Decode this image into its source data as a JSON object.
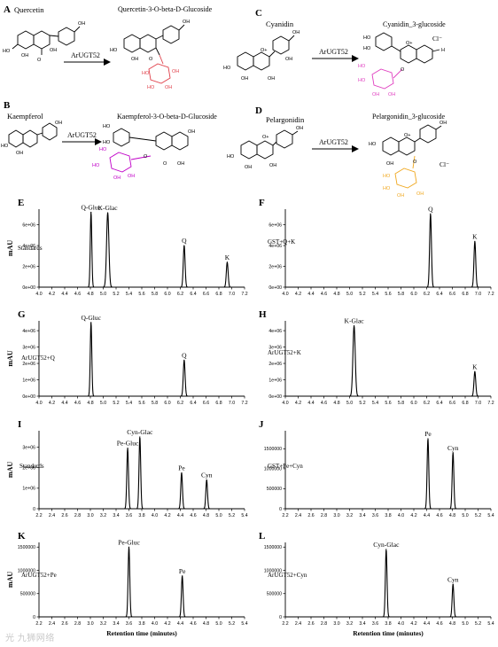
{
  "figure": {
    "watermark": "光 九狮网络"
  },
  "reactions": [
    {
      "panel": "A",
      "substrate": "Quercetin",
      "enzyme": "ArUGT52",
      "product": "Quercetin-3-O-beta-D-Glucoside",
      "sugar_color": "#e0404a"
    },
    {
      "panel": "B",
      "substrate": "Kaempferol",
      "enzyme": "ArUGT52",
      "product": "Kaempferol-3-O-beta-D-Glucoside",
      "sugar_color": "#c000c8"
    },
    {
      "panel": "C",
      "substrate": "Cyanidin",
      "enzyme": "ArUGT52",
      "product": "Cyanidin_3-glucoside",
      "sugar_color": "#e040c0",
      "counter_ion": "Cl⁻"
    },
    {
      "panel": "D",
      "substrate": "Pelargonidin",
      "enzyme": "ArUGT52",
      "product": "Pelargonidin_3-glucoside",
      "sugar_color": "#f0a820",
      "counter_ion": "Cl⁻"
    }
  ],
  "chart_data": [
    {
      "panel": "E",
      "type": "line",
      "ylabel": "mAU",
      "xlabel": "",
      "sample": "Standards",
      "xlim": [
        4.0,
        7.2
      ],
      "xticks": [
        4.0,
        4.2,
        4.4,
        4.6,
        4.8,
        5.0,
        5.2,
        5.4,
        5.6,
        5.8,
        6.0,
        6.2,
        6.4,
        6.6,
        6.8,
        7.0,
        7.2
      ],
      "ylim": [
        0,
        7500000
      ],
      "yticks": [
        0,
        2000000,
        4000000,
        6000000
      ],
      "ytick_labels": [
        "0e+00",
        "2e+06",
        "4e+06",
        "6e+06"
      ],
      "peaks": [
        {
          "x": 4.81,
          "y": 7200000,
          "w": 0.012,
          "label": "Q-Gluc"
        },
        {
          "x": 5.07,
          "y": 7150000,
          "w": 0.018,
          "label": "K-Glac"
        },
        {
          "x": 6.26,
          "y": 4000000,
          "w": 0.014,
          "label": "Q"
        },
        {
          "x": 6.93,
          "y": 2400000,
          "w": 0.014,
          "label": "K"
        }
      ]
    },
    {
      "panel": "F",
      "type": "line",
      "ylabel": "",
      "xlabel": "",
      "sample": "GST+Q+K",
      "xlim": [
        4.0,
        7.2
      ],
      "xticks": [
        4.0,
        4.2,
        4.4,
        4.6,
        4.8,
        5.0,
        5.2,
        5.4,
        5.6,
        5.8,
        6.0,
        6.2,
        6.4,
        6.6,
        6.8,
        7.0,
        7.2
      ],
      "ylim": [
        0,
        7500000
      ],
      "yticks": [
        0,
        2000000,
        4000000,
        6000000
      ],
      "ytick_labels": [
        "0e+00",
        "2e+06",
        "4e+06",
        "6e+06"
      ],
      "peaks": [
        {
          "x": 6.26,
          "y": 7050000,
          "w": 0.014,
          "label": "Q"
        },
        {
          "x": 6.95,
          "y": 4400000,
          "w": 0.014,
          "label": "K"
        }
      ]
    },
    {
      "panel": "G",
      "type": "line",
      "ylabel": "mAU",
      "xlabel": "",
      "sample": "ArUGT52+Q",
      "xlim": [
        4.0,
        7.2
      ],
      "xticks": [
        4.0,
        4.2,
        4.4,
        4.6,
        4.8,
        5.0,
        5.2,
        5.4,
        5.6,
        5.8,
        6.0,
        6.2,
        6.4,
        6.6,
        6.8,
        7.0,
        7.2
      ],
      "ylim": [
        0,
        4600000
      ],
      "yticks": [
        0,
        1000000,
        2000000,
        3000000,
        4000000
      ],
      "ytick_labels": [
        "0e+00",
        "1e+06",
        "2e+06",
        "3e+06",
        "4e+06"
      ],
      "peaks": [
        {
          "x": 4.81,
          "y": 4500000,
          "w": 0.012,
          "label": "Q-Gluc"
        },
        {
          "x": 6.26,
          "y": 2200000,
          "w": 0.014,
          "label": "Q"
        }
      ]
    },
    {
      "panel": "H",
      "type": "line",
      "ylabel": "",
      "xlabel": "",
      "sample": "ArUGT52+K",
      "xlim": [
        4.0,
        7.2
      ],
      "xticks": [
        4.0,
        4.2,
        4.4,
        4.6,
        4.8,
        5.0,
        5.2,
        5.4,
        5.6,
        5.8,
        6.0,
        6.2,
        6.4,
        6.6,
        6.8,
        7.0,
        7.2
      ],
      "ylim": [
        0,
        4600000
      ],
      "yticks": [
        0,
        1000000,
        2000000,
        3000000,
        4000000
      ],
      "ytick_labels": [
        "0e+00",
        "1e+06",
        "2e+06",
        "3e+06",
        "4e+06"
      ],
      "peaks": [
        {
          "x": 5.07,
          "y": 4300000,
          "w": 0.018,
          "label": "K-Glac"
        },
        {
          "x": 6.95,
          "y": 1500000,
          "w": 0.014,
          "label": "K"
        }
      ]
    },
    {
      "panel": "I",
      "type": "line",
      "ylabel": "mAU",
      "xlabel": "",
      "sample": "Standards",
      "xlim": [
        2.2,
        5.4
      ],
      "xticks": [
        2.2,
        2.4,
        2.6,
        2.8,
        3.0,
        3.2,
        3.4,
        3.6,
        3.8,
        4.0,
        4.2,
        4.4,
        4.6,
        4.8,
        5.0,
        5.2,
        5.4
      ],
      "ylim": [
        0,
        3800000
      ],
      "yticks": [
        0,
        1000000,
        2000000,
        3000000
      ],
      "ytick_labels": [
        "0",
        "1e+06",
        "2e+06",
        "3e+06"
      ],
      "peaks": [
        {
          "x": 3.58,
          "y": 2950000,
          "w": 0.013,
          "label": "Pe-Gluc"
        },
        {
          "x": 3.77,
          "y": 3500000,
          "w": 0.013,
          "label": "Cyn-Glac"
        },
        {
          "x": 4.42,
          "y": 1750000,
          "w": 0.013,
          "label": "Pe"
        },
        {
          "x": 4.81,
          "y": 1400000,
          "w": 0.013,
          "label": "Cyn"
        }
      ]
    },
    {
      "panel": "J",
      "type": "line",
      "ylabel": "",
      "xlabel": "",
      "sample": "GST+Pe+Cyn",
      "xlim": [
        2.2,
        5.4
      ],
      "xticks": [
        2.2,
        2.4,
        2.6,
        2.8,
        3.0,
        3.2,
        3.4,
        3.6,
        3.8,
        4.0,
        4.2,
        4.4,
        4.6,
        4.8,
        5.0,
        5.2,
        5.4
      ],
      "ylim": [
        0,
        1950000
      ],
      "yticks": [
        0,
        500000,
        1000000,
        1500000
      ],
      "ytick_labels": [
        "0",
        "500000",
        "1000000",
        "1500000"
      ],
      "peaks": [
        {
          "x": 4.42,
          "y": 1750000,
          "w": 0.013,
          "label": "Pe"
        },
        {
          "x": 4.81,
          "y": 1400000,
          "w": 0.013,
          "label": "Cyn"
        }
      ]
    },
    {
      "panel": "K",
      "type": "line",
      "ylabel": "mAU",
      "xlabel": "Retention time (minutes)",
      "sample": "ArUGT52+Pe",
      "xlim": [
        2.2,
        5.4
      ],
      "xticks": [
        2.2,
        2.4,
        2.6,
        2.8,
        3.0,
        3.2,
        3.4,
        3.6,
        3.8,
        4.0,
        4.2,
        4.4,
        4.6,
        4.8,
        5.0,
        5.2,
        5.4
      ],
      "ylim": [
        0,
        1600000
      ],
      "yticks": [
        0,
        500000,
        1000000,
        1500000
      ],
      "ytick_labels": [
        "0",
        "500000",
        "1000000",
        "1500000"
      ],
      "peaks": [
        {
          "x": 3.6,
          "y": 1500000,
          "w": 0.013,
          "label": "Pe-Gluc"
        },
        {
          "x": 4.43,
          "y": 880000,
          "w": 0.013,
          "label": "Pe"
        }
      ]
    },
    {
      "panel": "L",
      "type": "line",
      "ylabel": "",
      "xlabel": "Retention time (minutes)",
      "sample": "ArUGT52+Cyn",
      "xlim": [
        2.2,
        5.4
      ],
      "xticks": [
        2.2,
        2.4,
        2.6,
        2.8,
        3.0,
        3.2,
        3.4,
        3.6,
        3.8,
        4.0,
        4.2,
        4.4,
        4.6,
        4.8,
        5.0,
        5.2,
        5.4
      ],
      "ylim": [
        0,
        1600000
      ],
      "yticks": [
        0,
        500000,
        1000000,
        1500000
      ],
      "ytick_labels": [
        "0",
        "500000",
        "1000000",
        "1500000"
      ],
      "peaks": [
        {
          "x": 3.77,
          "y": 1450000,
          "w": 0.013,
          "label": "Cyn-Glac"
        },
        {
          "x": 4.81,
          "y": 700000,
          "w": 0.013,
          "label": "Cyn"
        }
      ]
    }
  ]
}
